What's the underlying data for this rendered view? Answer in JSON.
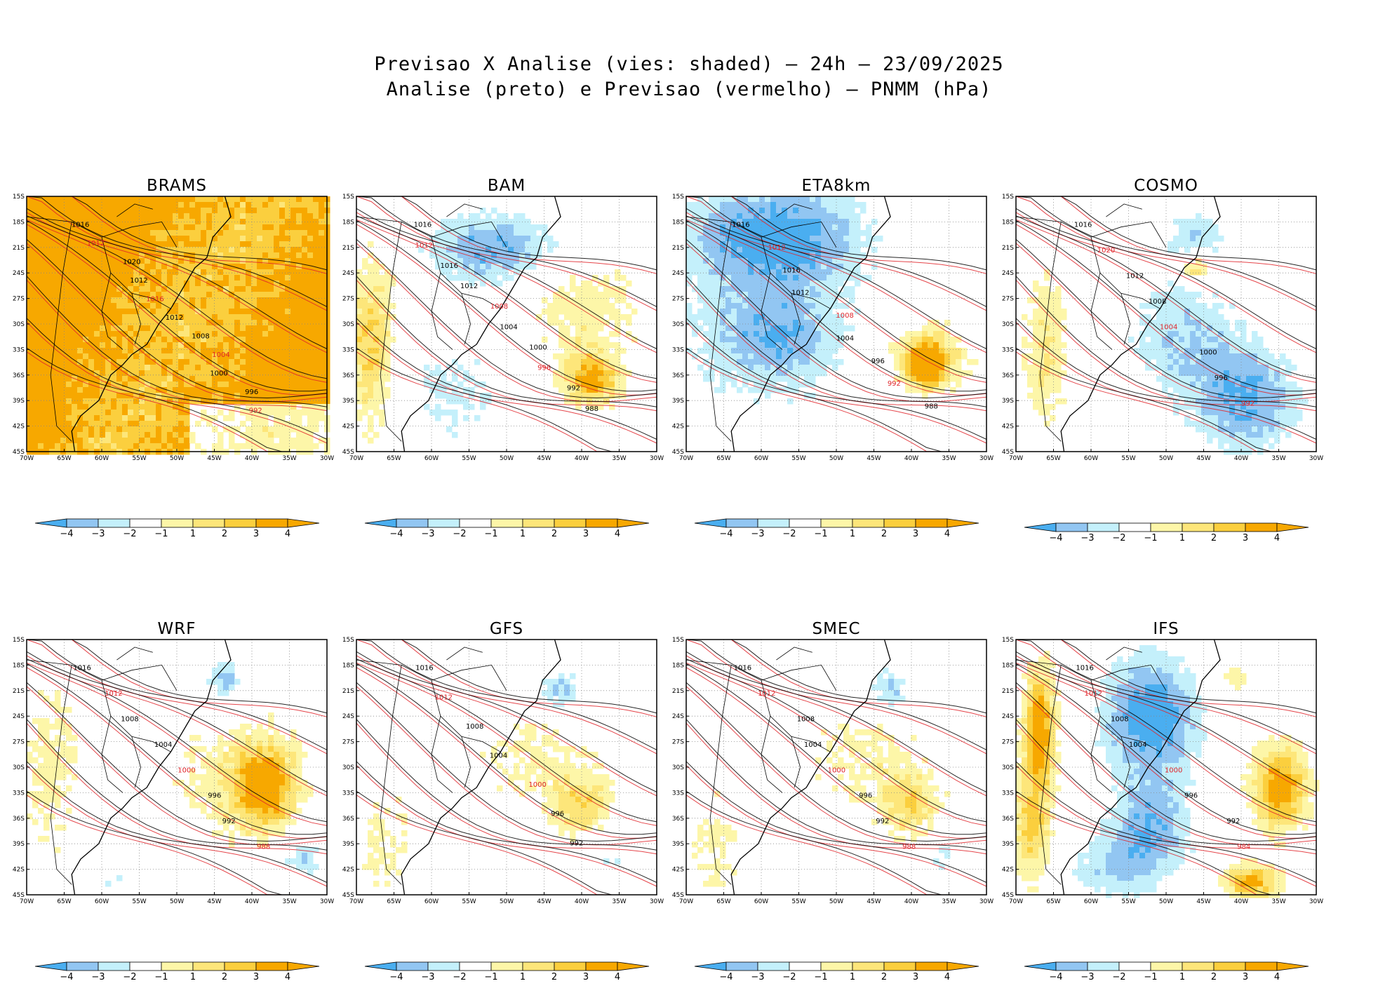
{
  "title_line1": "Previsao X Analise (vies: shaded) – 24h – 23/09/2025",
  "title_line2": "Analise (preto) e Previsao (vermelho) – PNMM (hPa)",
  "colors": {
    "neg4": "#4aaef0",
    "neg3": "#92c6f2",
    "neg2": "#c4f0fb",
    "neg1": "#ffffff",
    "pos1": "#fdf6a8",
    "pos2": "#fde67a",
    "pos3": "#fbcf3e",
    "pos4": "#f7a800",
    "analysis": "#000000",
    "forecast": "#e0242a"
  },
  "chart_data": [
    {
      "type": "heatmap",
      "model": "BRAMS",
      "title": "BRAMS",
      "bias_pattern": "positive-dominant",
      "xlabels": [
        "70W",
        "65W",
        "60W",
        "55W",
        "50W",
        "45W",
        "40W",
        "35W",
        "30W"
      ],
      "ylabels": [
        "15S",
        "18S",
        "21S",
        "24S",
        "27S",
        "30S",
        "33S",
        "36S",
        "39S",
        "42S",
        "45S"
      ],
      "xlim": [
        -70,
        -30
      ],
      "ylim": [
        -45,
        -15
      ],
      "contour_labels": [
        "1016",
        "1012",
        "1020",
        "1012",
        "1016",
        "1012",
        "1008",
        "1004",
        "1000",
        "996",
        "992"
      ]
    },
    {
      "type": "heatmap",
      "model": "BAM",
      "title": "BAM",
      "bias_pattern": "mixed",
      "xlabels": [
        "70W",
        "65W",
        "60W",
        "55W",
        "50W",
        "45W",
        "40W",
        "35W",
        "30W"
      ],
      "ylabels": [
        "15S",
        "18S",
        "21S",
        "24S",
        "27S",
        "30S",
        "33S",
        "36S",
        "39S",
        "42S",
        "45S"
      ],
      "xlim": [
        -70,
        -30
      ],
      "ylim": [
        -45,
        -15
      ],
      "contour_labels": [
        "1016",
        "1012",
        "1016",
        "1012",
        "1008",
        "1004",
        "1000",
        "996",
        "992",
        "988"
      ]
    },
    {
      "type": "heatmap",
      "model": "ETA8km",
      "title": "ETA8km",
      "bias_pattern": "negative-dominant",
      "xlabels": [
        "70W",
        "65W",
        "60W",
        "55W",
        "50W",
        "45W",
        "40W",
        "35W",
        "30W"
      ],
      "ylabels": [
        "15S",
        "18S",
        "21S",
        "24S",
        "27S",
        "30S",
        "33S",
        "36S",
        "39S",
        "42S",
        "45S"
      ],
      "xlim": [
        -70,
        -30
      ],
      "ylim": [
        -45,
        -15
      ],
      "contour_labels": [
        "1016",
        "1012",
        "1016",
        "1012",
        "1008",
        "1004",
        "996",
        "992",
        "988"
      ]
    },
    {
      "type": "heatmap",
      "model": "COSMO",
      "title": "COSMO",
      "bias_pattern": "negative-east",
      "xlabels": [
        "70W",
        "65W",
        "60W",
        "55W",
        "50W",
        "45W",
        "40W",
        "35W",
        "30W"
      ],
      "ylabels": [
        "15S",
        "18S",
        "21S",
        "24S",
        "27S",
        "30S",
        "33S",
        "36S",
        "39S",
        "42S",
        "45S"
      ],
      "xlim": [
        -70,
        -30
      ],
      "ylim": [
        -45,
        -15
      ],
      "contour_labels": [
        "1016",
        "1020",
        "1012",
        "1008",
        "1004",
        "1000",
        "996",
        "992"
      ]
    },
    {
      "type": "heatmap",
      "model": "WRF",
      "title": "WRF",
      "bias_pattern": "positive-east",
      "xlabels": [
        "70W",
        "65W",
        "60W",
        "55W",
        "50W",
        "45W",
        "40W",
        "35W",
        "30W"
      ],
      "ylabels": [
        "15S",
        "18S",
        "21S",
        "24S",
        "27S",
        "30S",
        "33S",
        "36S",
        "39S",
        "42S",
        "45S"
      ],
      "xlim": [
        -70,
        -30
      ],
      "ylim": [
        -45,
        -15
      ],
      "contour_labels": [
        "1016",
        "1012",
        "1008",
        "1004",
        "1000",
        "996",
        "992",
        "988"
      ]
    },
    {
      "type": "heatmap",
      "model": "GFS",
      "title": "GFS",
      "bias_pattern": "mixed-positive",
      "xlabels": [
        "70W",
        "65W",
        "60W",
        "55W",
        "50W",
        "45W",
        "40W",
        "35W",
        "30W"
      ],
      "ylabels": [
        "15S",
        "18S",
        "21S",
        "24S",
        "27S",
        "30S",
        "33S",
        "36S",
        "39S",
        "42S",
        "45S"
      ],
      "xlim": [
        -70,
        -30
      ],
      "ylim": [
        -45,
        -15
      ],
      "contour_labels": [
        "1016",
        "1012",
        "1008",
        "1004",
        "1000",
        "996",
        "992"
      ]
    },
    {
      "type": "heatmap",
      "model": "SMEC",
      "title": "SMEC",
      "bias_pattern": "mixed-positive",
      "xlabels": [
        "70W",
        "65W",
        "60W",
        "55W",
        "50W",
        "45W",
        "40W",
        "35W",
        "30W"
      ],
      "ylabels": [
        "15S",
        "18S",
        "21S",
        "24S",
        "27S",
        "30S",
        "33S",
        "36S",
        "39S",
        "42S",
        "45S"
      ],
      "xlim": [
        -70,
        -30
      ],
      "ylim": [
        -45,
        -15
      ],
      "contour_labels": [
        "1016",
        "1012",
        "1008",
        "1004",
        "1000",
        "996",
        "992",
        "988"
      ]
    },
    {
      "type": "heatmap",
      "model": "IFS",
      "title": "IFS",
      "bias_pattern": "strong-mixed",
      "xlabels": [
        "70W",
        "65W",
        "60W",
        "55W",
        "50W",
        "45W",
        "40W",
        "35W",
        "30W"
      ],
      "ylabels": [
        "15S",
        "18S",
        "21S",
        "24S",
        "27S",
        "30S",
        "33S",
        "36S",
        "39S",
        "42S",
        "45S"
      ],
      "xlim": [
        -70,
        -30
      ],
      "ylim": [
        -45,
        -15
      ],
      "contour_labels": [
        "1016",
        "1012",
        "1008",
        "1004",
        "1000",
        "996",
        "992",
        "984"
      ]
    }
  ],
  "colorbar": {
    "labels": [
      "-4",
      "-3",
      "-2",
      "-1",
      "1",
      "2",
      "3",
      "4"
    ],
    "levels": [
      -4,
      -3,
      -2,
      -1,
      1,
      2,
      3,
      4
    ]
  }
}
